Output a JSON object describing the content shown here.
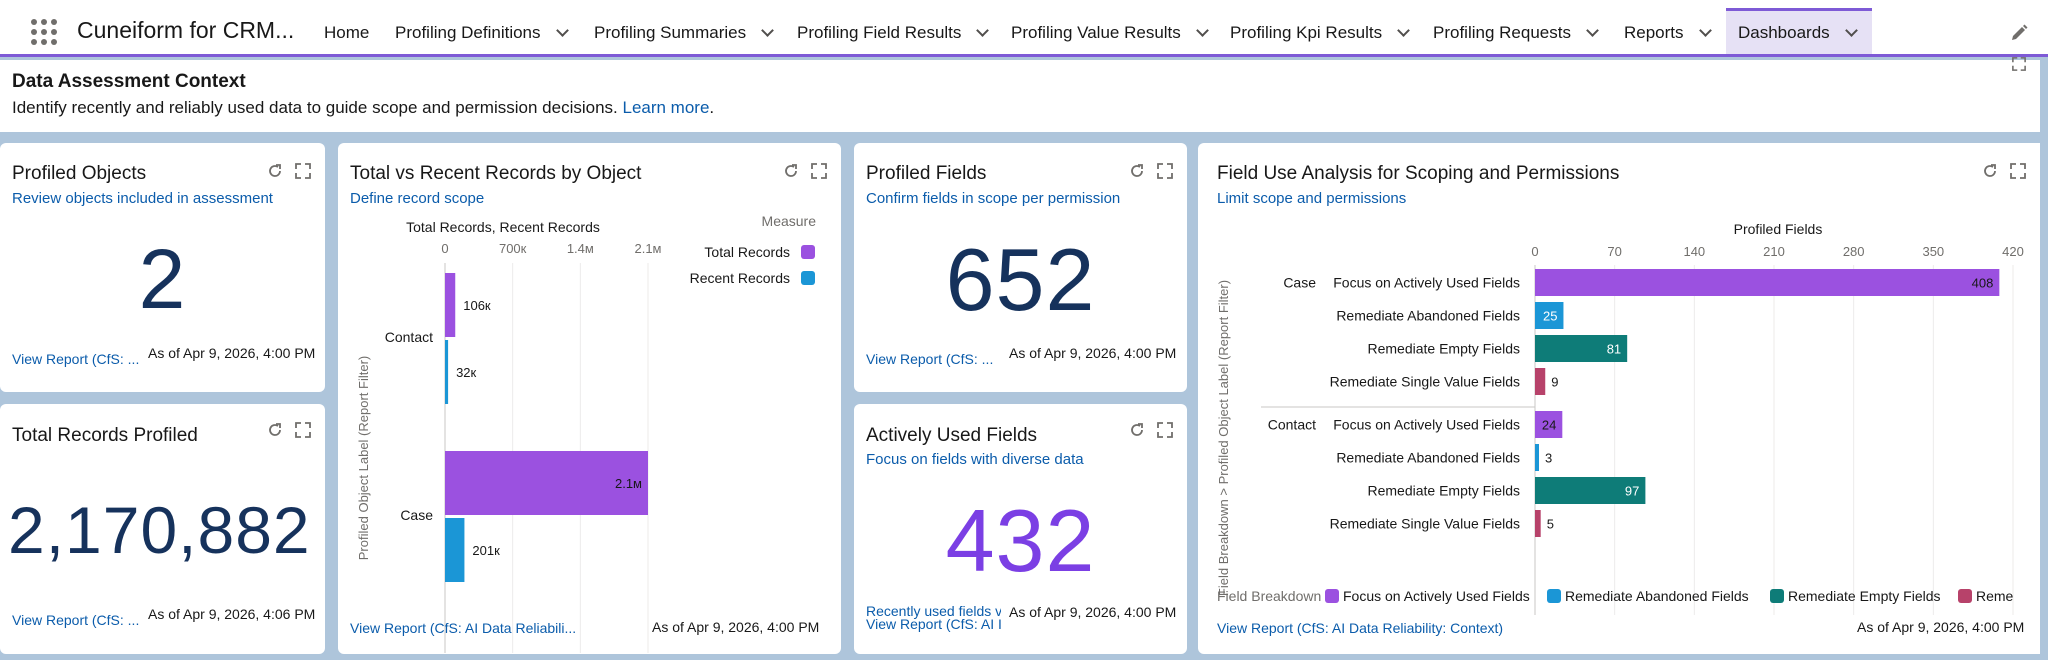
{
  "app": {
    "name": "Cuneiform for CRM...",
    "tabs": [
      {
        "label": "Home"
      },
      {
        "label": "Profiling Definitions"
      },
      {
        "label": "Profiling Summaries"
      },
      {
        "label": "Profiling Field Results"
      },
      {
        "label": "Profiling Value Results"
      },
      {
        "label": "Profiling Kpi Results"
      },
      {
        "label": "Profiling Requests"
      },
      {
        "label": "Reports"
      },
      {
        "label": "Dashboards"
      }
    ]
  },
  "context": {
    "title": "Data Assessment Context",
    "text": "Identify recently and reliably used data to guide scope and permission decisions. ",
    "link": "Learn more",
    "period": "."
  },
  "cards": {
    "profiled_objects": {
      "title": "Profiled Objects",
      "subtitle": "Review objects included in assessment",
      "value": "2",
      "report_link": "View Report (CfS: ...",
      "as_of": "As of Apr 9, 2026, 4:00 PM"
    },
    "total_records": {
      "title": "Total Records Profiled",
      "value": "2,170,882",
      "report_link": "View Report (CfS: ...",
      "as_of": "As of Apr 9, 2026, 4:06 PM"
    },
    "total_vs_recent": {
      "title": "Total vs Recent Records by Object",
      "subtitle": "Define record scope",
      "report_link": "View Report (CfS: AI Data Reliabili...",
      "as_of": "As of Apr 9, 2026, 4:00 PM"
    },
    "profiled_fields": {
      "title": "Profiled Fields",
      "subtitle": "Confirm fields in scope per permission",
      "value": "652",
      "report_link": "View Report (CfS: ...",
      "as_of": "As of Apr 9, 2026, 4:00 PM"
    },
    "actively_used": {
      "title": "Actively Used Fields",
      "subtitle": "Focus on fields with diverse data",
      "value": "432",
      "note_link": "Recently used fields v",
      "report_link": "View Report (CfS: AI I",
      "as_of": "As of Apr 9, 2026, 4:00 PM"
    },
    "field_use": {
      "title": "Field Use Analysis for Scoping and Permissions",
      "subtitle": "Limit scope and permissions",
      "report_link": "View Report (CfS: AI Data Reliability: Context)",
      "as_of": "As of Apr 9, 2026, 4:00 PM"
    }
  },
  "chart_data": [
    {
      "type": "bar",
      "orientation": "horizontal",
      "title": "Total Records, Recent Records",
      "ylabel": "Profiled Object Label (Report Filter)",
      "legend_title": "Measure",
      "legend_position": "top-right",
      "categories": [
        "Contact",
        "Case"
      ],
      "x_ticks": [
        "0",
        "700к",
        "1.4м",
        "2.1м"
      ],
      "xlim": [
        0,
        2100000
      ],
      "series": [
        {
          "name": "Total Records",
          "color": "#9b51e0",
          "values": [
            106000,
            2100000
          ],
          "labels": [
            "106к",
            "2.1м"
          ]
        },
        {
          "name": "Recent Records",
          "color": "#1b96d6",
          "values": [
            32000,
            201000
          ],
          "labels": [
            "32к",
            "201к"
          ]
        }
      ]
    },
    {
      "type": "bar",
      "orientation": "horizontal",
      "title": "Profiled Fields",
      "ylabel": "Field Breakdown  >  Profiled Object Label (Report Filter)",
      "legend_title": "Field Breakdown",
      "legend_position": "bottom",
      "x_ticks": [
        "0",
        "70",
        "140",
        "210",
        "280",
        "350",
        "420"
      ],
      "xlim": [
        0,
        420
      ],
      "groups": [
        {
          "label": "Case",
          "bars": [
            {
              "category": "Focus on Actively Used Fields",
              "value": 408
            },
            {
              "category": "Remediate Abandoned Fields",
              "value": 25
            },
            {
              "category": "Remediate Empty Fields",
              "value": 81
            },
            {
              "category": "Remediate Single Value Fields",
              "value": 9
            }
          ]
        },
        {
          "label": "Contact",
          "bars": [
            {
              "category": "Focus on Actively Used Fields",
              "value": 24
            },
            {
              "category": "Remediate Abandoned Fields",
              "value": 3
            },
            {
              "category": "Remediate Empty Fields",
              "value": 97
            },
            {
              "category": "Remediate Single Value Fields",
              "value": 5
            }
          ]
        }
      ],
      "legend": [
        {
          "name": "Focus on Actively Used Fields",
          "color": "#9b51e0"
        },
        {
          "name": "Remediate Abandoned Fields",
          "color": "#1b96d6"
        },
        {
          "name": "Remediate Empty Fields",
          "color": "#0e7c78"
        },
        {
          "name": "Reme",
          "color": "#b7426a"
        }
      ]
    }
  ]
}
